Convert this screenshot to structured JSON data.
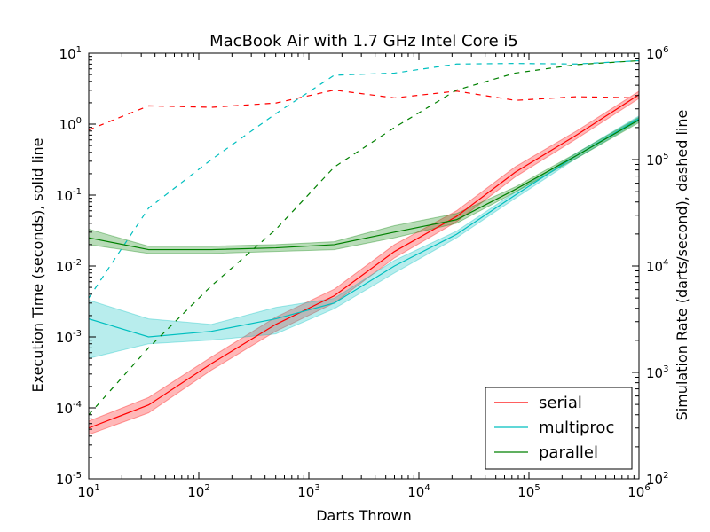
{
  "chart_data": {
    "type": "line",
    "title": "MacBook Air with 1.7 GHz Intel Core i5",
    "xlabel": "Darts Thrown",
    "ylabel_left": "Execution Time (seconds), solid line",
    "ylabel_right": "Simulation Rate (darts/second), dashed line",
    "x_scale": "log",
    "y_left_scale": "log",
    "y_right_scale": "log",
    "xlim": [
      10,
      1000000
    ],
    "ylim_left": [
      1e-05,
      10
    ],
    "ylim_right": [
      100,
      1000000
    ],
    "x_ticks": [
      {
        "base": "10",
        "exp": "1",
        "value": 10
      },
      {
        "base": "10",
        "exp": "2",
        "value": 100
      },
      {
        "base": "10",
        "exp": "3",
        "value": 1000
      },
      {
        "base": "10",
        "exp": "4",
        "value": 10000
      },
      {
        "base": "10",
        "exp": "5",
        "value": 100000
      },
      {
        "base": "10",
        "exp": "6",
        "value": 1000000
      }
    ],
    "y_left_ticks": [
      {
        "base": "10",
        "exp": "-5",
        "value": 1e-05
      },
      {
        "base": "10",
        "exp": "-4",
        "value": 0.0001
      },
      {
        "base": "10",
        "exp": "-3",
        "value": 0.001
      },
      {
        "base": "10",
        "exp": "-2",
        "value": 0.01
      },
      {
        "base": "10",
        "exp": "-1",
        "value": 0.1
      },
      {
        "base": "10",
        "exp": "0",
        "value": 1
      },
      {
        "base": "10",
        "exp": "1",
        "value": 10
      }
    ],
    "y_right_ticks": [
      {
        "base": "10",
        "exp": "2",
        "value": 100
      },
      {
        "base": "10",
        "exp": "3",
        "value": 1000
      },
      {
        "base": "10",
        "exp": "4",
        "value": 10000
      },
      {
        "base": "10",
        "exp": "5",
        "value": 100000
      },
      {
        "base": "10",
        "exp": "6",
        "value": 1000000
      }
    ],
    "x": [
      10,
      35,
      130,
      500,
      1700,
      6000,
      22000,
      75000,
      270000,
      1000000
    ],
    "legend_position": "lower-right",
    "series": [
      {
        "name": "serial",
        "color": "#ff0000",
        "time": [
          5.2e-05,
          0.00011,
          0.00042,
          0.0015,
          0.0038,
          0.016,
          0.05,
          0.21,
          0.7,
          2.6
        ],
        "time_low": [
          4.2e-05,
          8.5e-05,
          0.00034,
          0.0012,
          0.003,
          0.013,
          0.042,
          0.18,
          0.62,
          2.3
        ],
        "time_high": [
          6.5e-05,
          0.00014,
          0.00052,
          0.0019,
          0.0047,
          0.02,
          0.06,
          0.25,
          0.8,
          2.9
        ],
        "rate": [
          190000,
          320000,
          310000,
          340000,
          450000,
          380000,
          440000,
          360000,
          390000,
          380000
        ]
      },
      {
        "name": "multiproc",
        "color": "#00bfbf",
        "time": [
          0.0018,
          0.001,
          0.0012,
          0.0018,
          0.003,
          0.01,
          0.028,
          0.1,
          0.36,
          1.2
        ],
        "time_low": [
          0.0005,
          0.0008,
          0.0009,
          0.0011,
          0.0025,
          0.008,
          0.025,
          0.09,
          0.33,
          1.1
        ],
        "time_high": [
          0.0033,
          0.0018,
          0.0015,
          0.0026,
          0.0035,
          0.012,
          0.031,
          0.11,
          0.39,
          1.3
        ],
        "rate": [
          5000,
          35000,
          100000,
          270000,
          620000,
          650000,
          790000,
          800000,
          790000,
          850000
        ]
      },
      {
        "name": "parallel",
        "color": "#008000",
        "time": [
          0.025,
          0.017,
          0.017,
          0.018,
          0.02,
          0.03,
          0.045,
          0.12,
          0.36,
          1.15
        ],
        "time_low": [
          0.02,
          0.015,
          0.015,
          0.016,
          0.017,
          0.025,
          0.04,
          0.11,
          0.33,
          1.05
        ],
        "time_high": [
          0.033,
          0.019,
          0.019,
          0.02,
          0.022,
          0.037,
          0.055,
          0.13,
          0.39,
          1.25
        ],
        "rate": [
          400,
          1700,
          6500,
          22000,
          85000,
          200000,
          450000,
          650000,
          780000,
          850000
        ]
      }
    ]
  }
}
